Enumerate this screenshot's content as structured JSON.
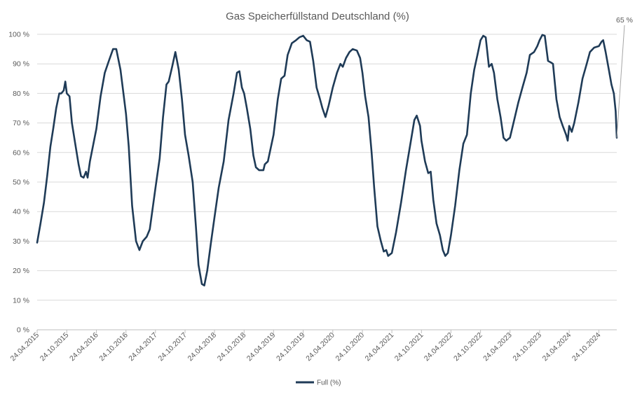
{
  "chart_data": {
    "type": "line",
    "title": "Gas Speicherfüllstand Deutschland (%)",
    "xlabel": "",
    "ylabel": "",
    "ylim": [
      0,
      100
    ],
    "y_ticks": [
      "0 %",
      "10 %",
      "20 %",
      "30 %",
      "40 %",
      "50 %",
      "60 %",
      "70 %",
      "80 %",
      "90 %",
      "100 %"
    ],
    "x_ticks": [
      "24.04.2015",
      "24.10.2015",
      "24.04.2016",
      "24.10.2016",
      "24.04.2017",
      "24.10.2017",
      "24.04.2018",
      "24.10.2018",
      "24.04.2019",
      "24.10.2019",
      "24.04.2020",
      "24.10.2020",
      "24.04.2021",
      "24.10.2021",
      "24.04.2022",
      "24.10.2022",
      "24.04.2023",
      "24.10.2023",
      "24.04.2024",
      "24.10.2024"
    ],
    "grid": true,
    "legend_position": "bottom",
    "line_color": "#1f3b57",
    "annotation": {
      "label": "65 %",
      "value": 65
    },
    "series": [
      {
        "name": "Full (%)",
        "points": [
          [
            "2015-04-24",
            29.5
          ],
          [
            "2015-05-15",
            36
          ],
          [
            "2015-06-05",
            43
          ],
          [
            "2015-06-25",
            52
          ],
          [
            "2015-07-15",
            62
          ],
          [
            "2015-08-01",
            68
          ],
          [
            "2015-08-20",
            75
          ],
          [
            "2015-09-08",
            80
          ],
          [
            "2015-09-20",
            80
          ],
          [
            "2015-10-05",
            81
          ],
          [
            "2015-10-15",
            84
          ],
          [
            "2015-10-24",
            80
          ],
          [
            "2015-11-10",
            79
          ],
          [
            "2015-11-25",
            70
          ],
          [
            "2015-12-15",
            63
          ],
          [
            "2016-01-05",
            56
          ],
          [
            "2016-01-20",
            52
          ],
          [
            "2016-02-05",
            51.5
          ],
          [
            "2016-02-20",
            53.5
          ],
          [
            "2016-03-01",
            51.5
          ],
          [
            "2016-03-15",
            57
          ],
          [
            "2016-04-24",
            68
          ],
          [
            "2016-05-20",
            79
          ],
          [
            "2016-06-15",
            87
          ],
          [
            "2016-07-10",
            91
          ],
          [
            "2016-08-05",
            95
          ],
          [
            "2016-08-25",
            95
          ],
          [
            "2016-09-20",
            88
          ],
          [
            "2016-10-24",
            73
          ],
          [
            "2016-11-10",
            62
          ],
          [
            "2016-12-01",
            42
          ],
          [
            "2016-12-25",
            30
          ],
          [
            "2017-01-15",
            27
          ],
          [
            "2017-02-05",
            30
          ],
          [
            "2017-03-01",
            31.5
          ],
          [
            "2017-03-20",
            34
          ],
          [
            "2017-04-24",
            48
          ],
          [
            "2017-05-20",
            58
          ],
          [
            "2017-06-10",
            72
          ],
          [
            "2017-07-01",
            83
          ],
          [
            "2017-07-15",
            84
          ],
          [
            "2017-08-05",
            89
          ],
          [
            "2017-08-25",
            94
          ],
          [
            "2017-09-15",
            88
          ],
          [
            "2017-10-05",
            78
          ],
          [
            "2017-10-24",
            66
          ],
          [
            "2017-11-15",
            59
          ],
          [
            "2017-12-10",
            50
          ],
          [
            "2017-12-30",
            35
          ],
          [
            "2018-01-15",
            22
          ],
          [
            "2018-02-05",
            15.5
          ],
          [
            "2018-02-20",
            15
          ],
          [
            "2018-03-10",
            20
          ],
          [
            "2018-04-01",
            29
          ],
          [
            "2018-04-24",
            38
          ],
          [
            "2018-05-20",
            48
          ],
          [
            "2018-06-20",
            57
          ],
          [
            "2018-07-20",
            71
          ],
          [
            "2018-08-20",
            80
          ],
          [
            "2018-09-10",
            87
          ],
          [
            "2018-09-25",
            87.5
          ],
          [
            "2018-10-10",
            82
          ],
          [
            "2018-10-24",
            80
          ],
          [
            "2018-11-10",
            75
          ],
          [
            "2018-12-01",
            68
          ],
          [
            "2018-12-20",
            59
          ],
          [
            "2019-01-05",
            55
          ],
          [
            "2019-01-25",
            54
          ],
          [
            "2019-02-20",
            54
          ],
          [
            "2019-03-01",
            56
          ],
          [
            "2019-03-20",
            57
          ],
          [
            "2019-04-24",
            66
          ],
          [
            "2019-05-20",
            78
          ],
          [
            "2019-06-10",
            85
          ],
          [
            "2019-07-01",
            86
          ],
          [
            "2019-07-20",
            93
          ],
          [
            "2019-08-15",
            97
          ],
          [
            "2019-09-10",
            98
          ],
          [
            "2019-10-01",
            99
          ],
          [
            "2019-10-24",
            99.5
          ],
          [
            "2019-11-15",
            98
          ],
          [
            "2019-12-05",
            97.5
          ],
          [
            "2019-12-25",
            91
          ],
          [
            "2020-01-15",
            82
          ],
          [
            "2020-02-05",
            78
          ],
          [
            "2020-02-20",
            75
          ],
          [
            "2020-03-10",
            72
          ],
          [
            "2020-03-30",
            76
          ],
          [
            "2020-04-24",
            82
          ],
          [
            "2020-05-20",
            87
          ],
          [
            "2020-06-10",
            90
          ],
          [
            "2020-06-25",
            89
          ],
          [
            "2020-07-15",
            92
          ],
          [
            "2020-08-05",
            94
          ],
          [
            "2020-08-25",
            95
          ],
          [
            "2020-09-20",
            94.5
          ],
          [
            "2020-10-10",
            92
          ],
          [
            "2020-10-24",
            87
          ],
          [
            "2020-11-10",
            79
          ],
          [
            "2020-12-01",
            72
          ],
          [
            "2020-12-20",
            60
          ],
          [
            "2021-01-05",
            48
          ],
          [
            "2021-01-25",
            35
          ],
          [
            "2021-02-15",
            30
          ],
          [
            "2021-03-05",
            26.5
          ],
          [
            "2021-03-20",
            27
          ],
          [
            "2021-04-01",
            25
          ],
          [
            "2021-04-24",
            26
          ],
          [
            "2021-05-20",
            33
          ],
          [
            "2021-06-20",
            43
          ],
          [
            "2021-07-20",
            54
          ],
          [
            "2021-08-20",
            64
          ],
          [
            "2021-09-10",
            71
          ],
          [
            "2021-09-25",
            72.5
          ],
          [
            "2021-10-15",
            69
          ],
          [
            "2021-10-24",
            64
          ],
          [
            "2021-11-15",
            57
          ],
          [
            "2021-12-05",
            53
          ],
          [
            "2021-12-20",
            53.5
          ],
          [
            "2022-01-05",
            44
          ],
          [
            "2022-01-25",
            36
          ],
          [
            "2022-02-15",
            32
          ],
          [
            "2022-03-05",
            27
          ],
          [
            "2022-03-20",
            25
          ],
          [
            "2022-04-05",
            26
          ],
          [
            "2022-04-24",
            32
          ],
          [
            "2022-05-20",
            42
          ],
          [
            "2022-06-15",
            54
          ],
          [
            "2022-07-10",
            63
          ],
          [
            "2022-08-01",
            66
          ],
          [
            "2022-08-25",
            80
          ],
          [
            "2022-09-15",
            88
          ],
          [
            "2022-10-05",
            93
          ],
          [
            "2022-10-24",
            98
          ],
          [
            "2022-11-10",
            99.5
          ],
          [
            "2022-11-25",
            99
          ],
          [
            "2022-12-15",
            89
          ],
          [
            "2023-01-01",
            90
          ],
          [
            "2023-01-15",
            87
          ],
          [
            "2023-02-05",
            78
          ],
          [
            "2023-02-25",
            72
          ],
          [
            "2023-03-15",
            65
          ],
          [
            "2023-04-01",
            64
          ],
          [
            "2023-04-24",
            65
          ],
          [
            "2023-05-20",
            71
          ],
          [
            "2023-06-15",
            77
          ],
          [
            "2023-07-10",
            82
          ],
          [
            "2023-08-05",
            87
          ],
          [
            "2023-08-25",
            93
          ],
          [
            "2023-09-20",
            94
          ],
          [
            "2023-10-10",
            96
          ],
          [
            "2023-10-24",
            98
          ],
          [
            "2023-11-10",
            99.8
          ],
          [
            "2023-11-25",
            99.5
          ],
          [
            "2023-12-15",
            91
          ],
          [
            "2024-01-01",
            90.5
          ],
          [
            "2024-01-15",
            90
          ],
          [
            "2024-02-05",
            78
          ],
          [
            "2024-02-25",
            72
          ],
          [
            "2024-03-15",
            69
          ],
          [
            "2024-04-05",
            66
          ],
          [
            "2024-04-15",
            64
          ],
          [
            "2024-04-24",
            69
          ],
          [
            "2024-05-10",
            67
          ],
          [
            "2024-05-25",
            70
          ],
          [
            "2024-06-20",
            77
          ],
          [
            "2024-07-15",
            85
          ],
          [
            "2024-08-10",
            90
          ],
          [
            "2024-08-30",
            94
          ],
          [
            "2024-09-25",
            95.5
          ],
          [
            "2024-10-24",
            96
          ],
          [
            "2024-11-10",
            97.5
          ],
          [
            "2024-11-20",
            98
          ],
          [
            "2024-12-05",
            94
          ],
          [
            "2024-12-25",
            88
          ],
          [
            "2025-01-10",
            83
          ],
          [
            "2025-01-25",
            80
          ],
          [
            "2025-02-05",
            74
          ],
          [
            "2025-02-12",
            65
          ]
        ]
      }
    ]
  }
}
